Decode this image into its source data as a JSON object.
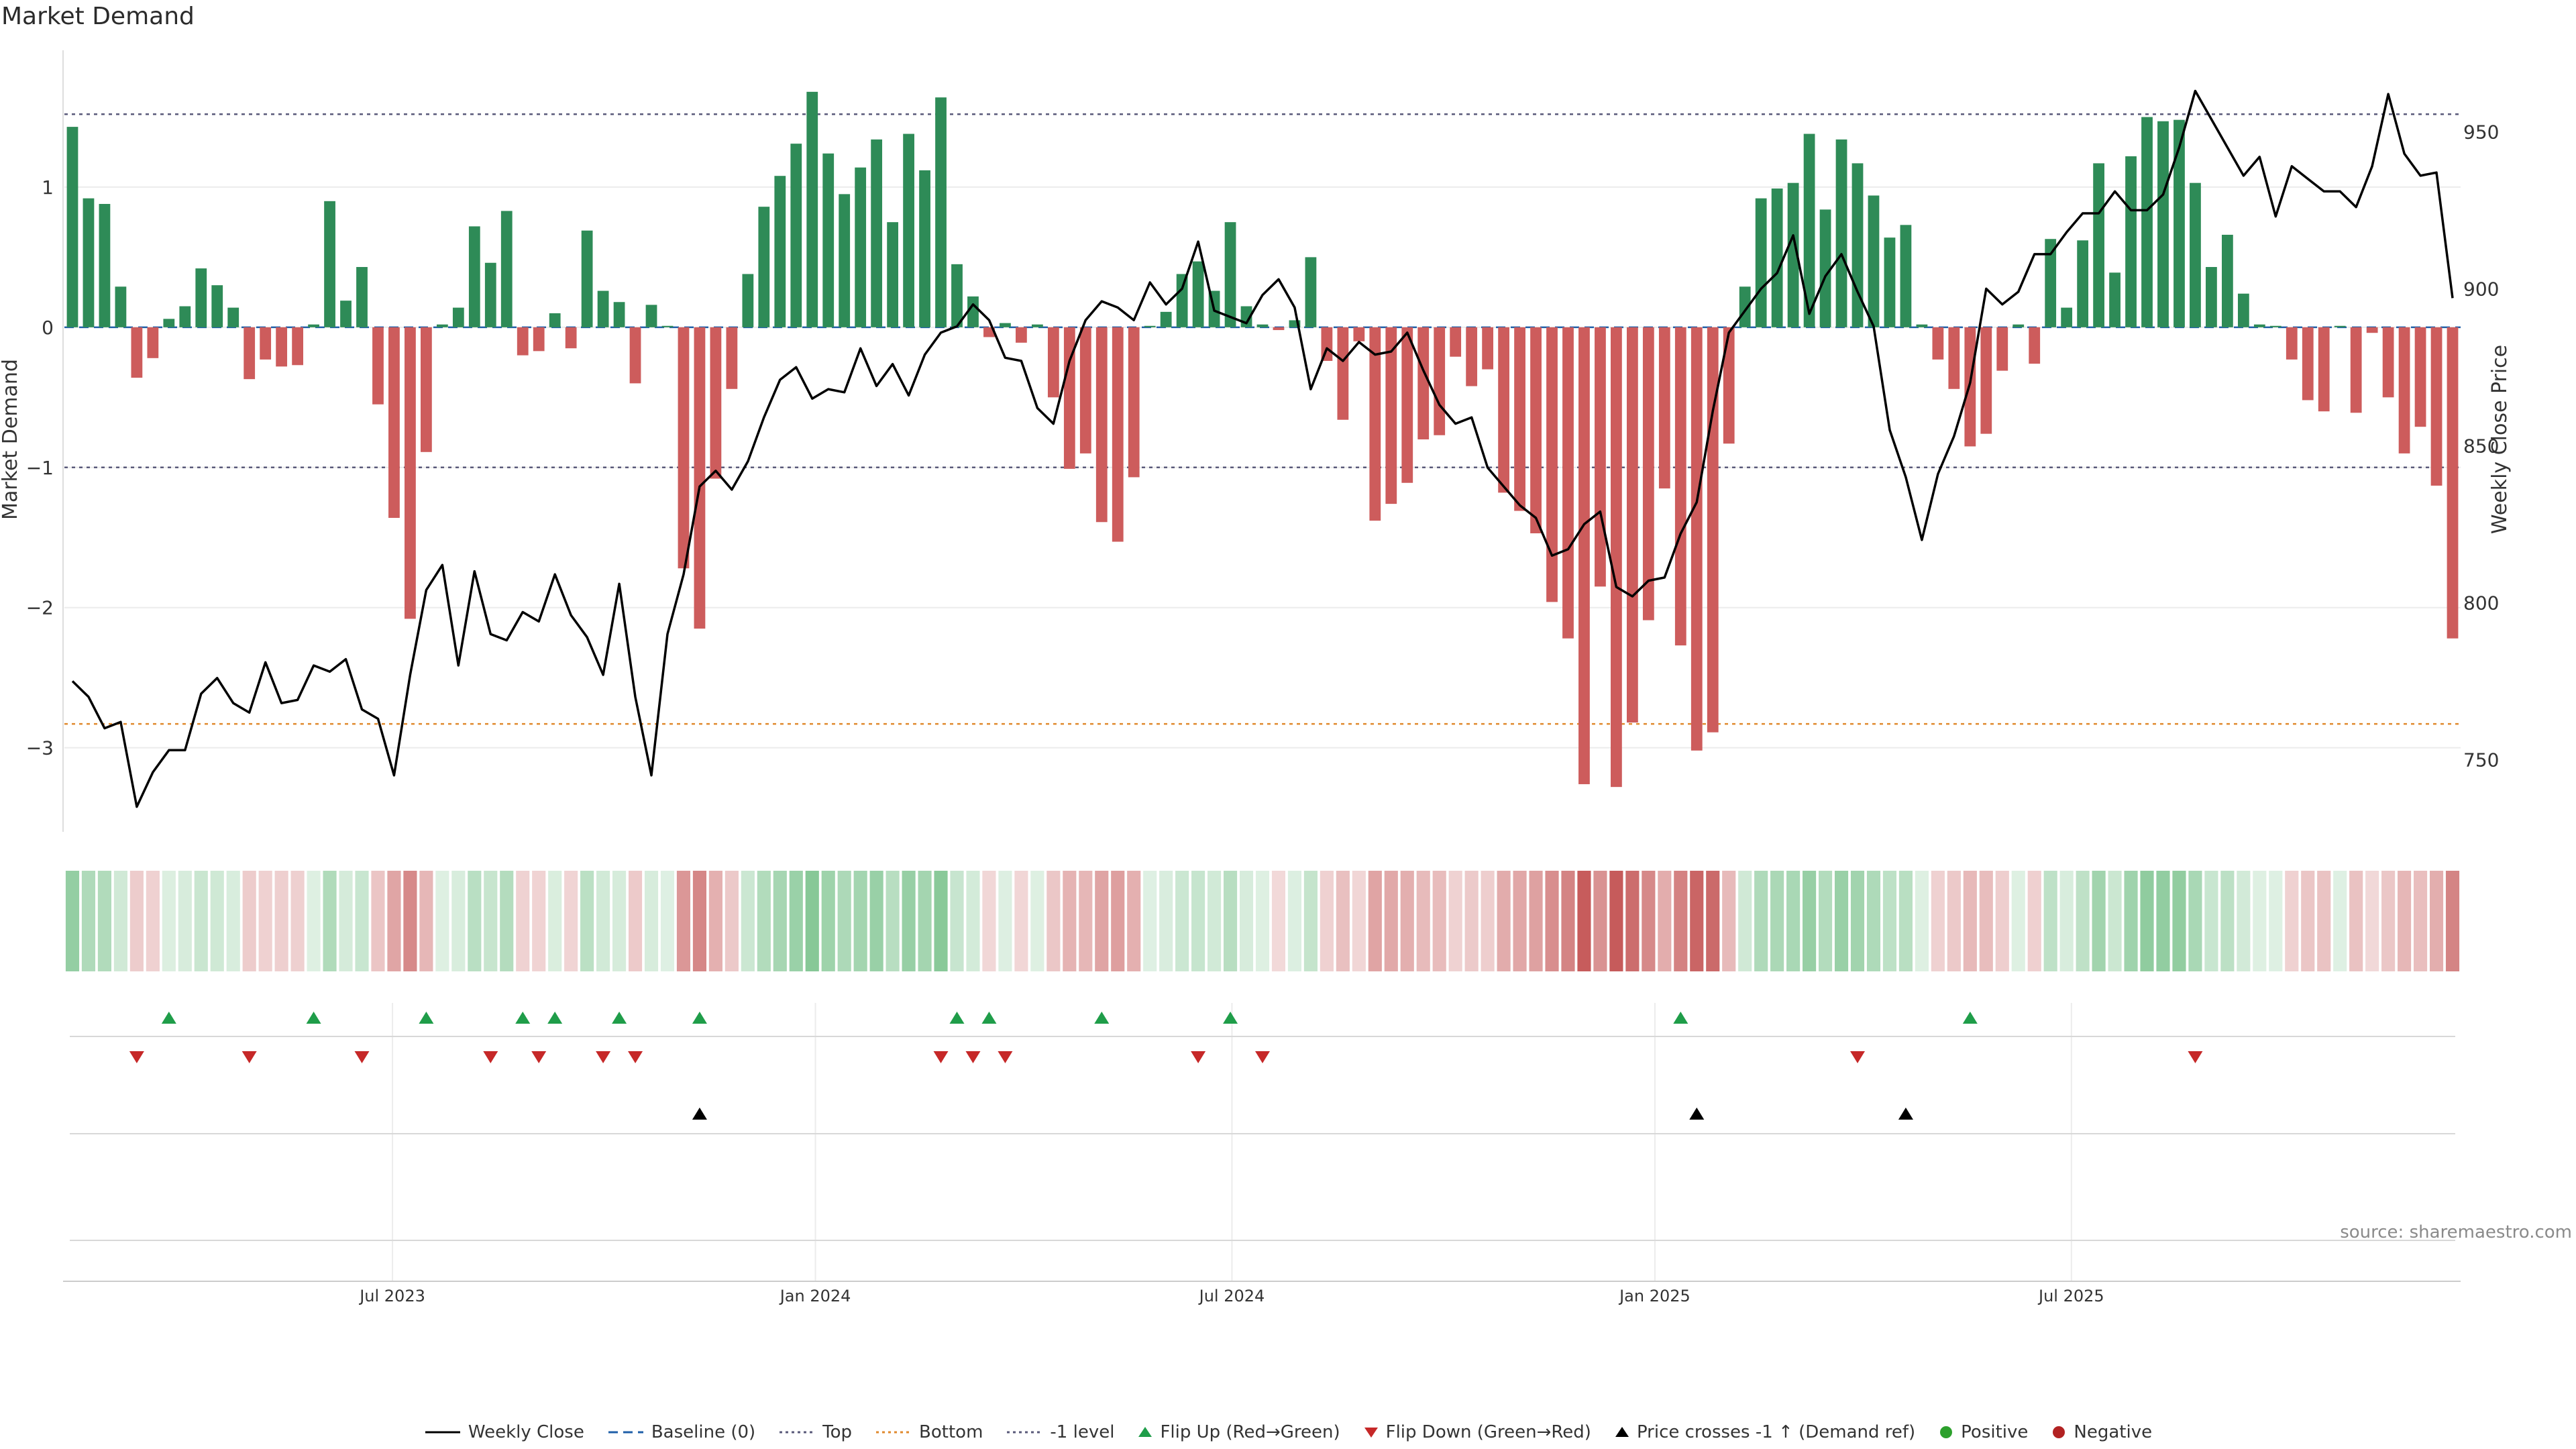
{
  "title": "Market Demand",
  "source": "source: sharemaestro.com",
  "colors": {
    "positive_bar": "#2e8b57",
    "negative_bar": "#cd5c5c",
    "price_line": "#000000",
    "baseline": "#1f5fa8",
    "top_level": "#5a5a7a",
    "bottom_level": "#e08a2e",
    "minus1_level": "#5a5a7a",
    "flip_up": "#1f9d49",
    "flip_down": "#c62828",
    "cross_marker": "#000000",
    "positive_dot": "#2ca02c",
    "negative_dot": "#b22222"
  },
  "legend": [
    {
      "label": "Weekly Close",
      "icon": "solid-line"
    },
    {
      "label": "Baseline (0)",
      "icon": "dashed-line"
    },
    {
      "label": "Top",
      "icon": "dotted-line"
    },
    {
      "label": "Bottom",
      "icon": "dotted-line"
    },
    {
      "label": "-1 level",
      "icon": "dotted-line"
    },
    {
      "label": "Flip Up (Red→Green)",
      "icon": "triangle-up"
    },
    {
      "label": "Flip Down (Green→Red)",
      "icon": "triangle-down"
    },
    {
      "label": "Price crosses -1 ↑ (Demand ref)",
      "icon": "triangle-up"
    },
    {
      "label": "Positive",
      "icon": "dot"
    },
    {
      "label": "Negative",
      "icon": "dot"
    }
  ],
  "chart_data": {
    "type": "bar",
    "title": "Market Demand",
    "ylabel": "Market Demand",
    "y2label": "Weekly Close Price",
    "ylim": [
      -3.6,
      2.0
    ],
    "y2lim": [
      727,
      977
    ],
    "yticks": [
      1,
      0,
      -1,
      -2,
      -3
    ],
    "ytick_labels": [
      "1",
      "0",
      "−1",
      "−2",
      "−3"
    ],
    "y2ticks": [
      950,
      900,
      850,
      800,
      750
    ],
    "xlim": [
      0,
      144
    ],
    "xticks": [
      {
        "label": "Jul 2023",
        "week": 20.4
      },
      {
        "label": "Jan 2024",
        "week": 46.7
      },
      {
        "label": "Jul 2024",
        "week": 72.6
      },
      {
        "label": "Jan 2025",
        "week": 98.9
      },
      {
        "label": "Jul 2025",
        "week": 124.8
      }
    ],
    "levels": {
      "top": 1.52,
      "bottom": -2.83,
      "minus1": -1.0,
      "baseline": 0
    },
    "demand": [
      1.43,
      0.92,
      0.88,
      0.29,
      -0.36,
      -0.22,
      0.06,
      0.15,
      0.42,
      0.3,
      0.14,
      -0.37,
      -0.23,
      -0.28,
      -0.27,
      0.02,
      0.9,
      0.19,
      0.43,
      -0.55,
      -1.36,
      -2.08,
      -0.89,
      0.02,
      0.14,
      0.72,
      0.46,
      0.83,
      -0.2,
      -0.17,
      0.1,
      -0.15,
      0.69,
      0.26,
      0.18,
      -0.4,
      0.16,
      0.01,
      -1.72,
      -2.15,
      -1.08,
      -0.44,
      0.38,
      0.86,
      1.08,
      1.31,
      1.68,
      1.24,
      0.95,
      1.14,
      1.34,
      0.75,
      1.38,
      1.12,
      1.64,
      0.45,
      0.22,
      -0.07,
      0.03,
      -0.11,
      0.02,
      -0.5,
      -1.01,
      -0.9,
      -1.39,
      -1.53,
      -1.07,
      0.01,
      0.11,
      0.38,
      0.47,
      0.26,
      0.75,
      0.15,
      0.02,
      -0.02,
      0.05,
      0.5,
      -0.24,
      -0.66,
      -0.1,
      -1.38,
      -1.26,
      -1.11,
      -0.8,
      -0.77,
      -0.21,
      -0.42,
      -0.3,
      -1.18,
      -1.31,
      -1.47,
      -1.96,
      -2.22,
      -3.26,
      -1.85,
      -3.28,
      -2.82,
      -2.09,
      -1.15,
      -2.27,
      -3.02,
      -2.89,
      -0.83,
      0.29,
      0.92,
      0.99,
      1.03,
      1.38,
      0.84,
      1.34,
      1.17,
      0.94,
      0.64,
      0.73,
      0.02,
      -0.23,
      -0.44,
      -0.85,
      -0.76,
      -0.31,
      0.02,
      -0.26,
      0.63,
      0.14,
      0.62,
      1.17,
      0.39,
      1.22,
      1.5,
      1.47,
      1.48,
      1.03,
      0.43,
      0.66,
      0.24,
      0.02,
      0.01,
      -0.23,
      -0.52,
      -0.6,
      0.01,
      -0.61,
      -0.04,
      -0.5,
      -0.9,
      -0.71,
      -1.13,
      -2.22
    ],
    "price": [
      775,
      770,
      760,
      762,
      735,
      746,
      753,
      753,
      771,
      776,
      768,
      765,
      781,
      768,
      769,
      780,
      778,
      782,
      766,
      763,
      745,
      777,
      804,
      812,
      780,
      810,
      790,
      788,
      797,
      794,
      809,
      796,
      789,
      777,
      806,
      770,
      745,
      790,
      809,
      837,
      842,
      836,
      845,
      859,
      871,
      875,
      865,
      868,
      867,
      881,
      869,
      876,
      866,
      879,
      886,
      888,
      895,
      890,
      878,
      877,
      862,
      857,
      877,
      890,
      896,
      894,
      890,
      902,
      895,
      900,
      915,
      893,
      891,
      889,
      898,
      903,
      894,
      868,
      881,
      877,
      883,
      879,
      880,
      886,
      874,
      863,
      857,
      859,
      843,
      837,
      831,
      827,
      815,
      817,
      825,
      829,
      805,
      802,
      807,
      808,
      822,
      832,
      861,
      886,
      893,
      900,
      905,
      917,
      892,
      904,
      911,
      899,
      888,
      855,
      840,
      820,
      841,
      853,
      870,
      900,
      895,
      899,
      911,
      911,
      918,
      924,
      924,
      931,
      925,
      925,
      930,
      945,
      963,
      954,
      945,
      936,
      942,
      923,
      939,
      935,
      931,
      931,
      926,
      939,
      962,
      943,
      936,
      937,
      897
    ],
    "flip_up_weeks": [
      6,
      15,
      22,
      28,
      30,
      34,
      39,
      55,
      57,
      64,
      72,
      100,
      118
    ],
    "flip_down_weeks": [
      4,
      11,
      18,
      26,
      29,
      33,
      35,
      54,
      56,
      58,
      70,
      74,
      111,
      132
    ],
    "price_cross_up_weeks": [
      39,
      101,
      114
    ]
  }
}
